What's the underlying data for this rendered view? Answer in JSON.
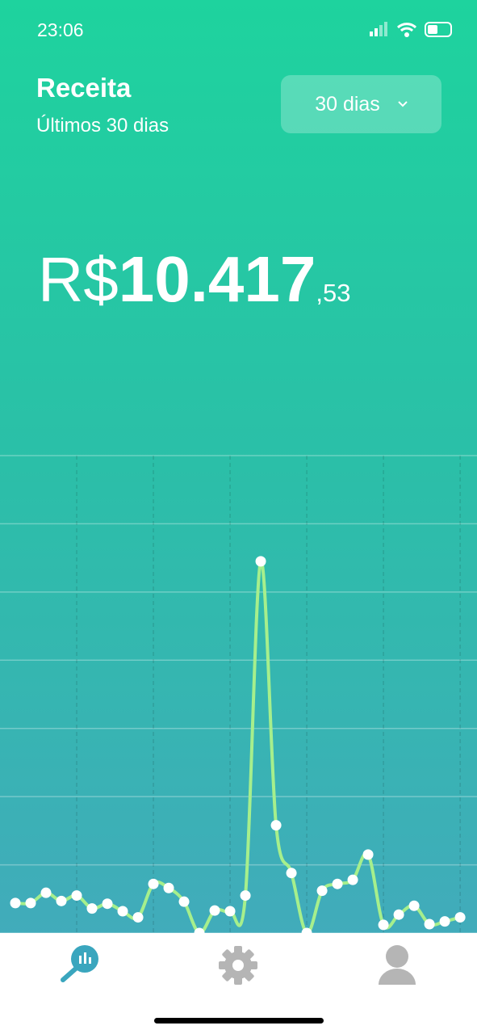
{
  "status_bar": {
    "time": "23:06"
  },
  "header": {
    "title": "Receita",
    "subtitle": "Últimos 30 dias",
    "period_button": "30 dias"
  },
  "total": {
    "currency": "R$",
    "integer": "10.417",
    "cents": ",53"
  },
  "chart_data": {
    "type": "line",
    "color": "#a6ef8c",
    "point_color": "#ffffff",
    "grid": true,
    "x": [
      1,
      2,
      3,
      4,
      5,
      6,
      7,
      8,
      9,
      10,
      11,
      12,
      13,
      14,
      15,
      16,
      17,
      18,
      19,
      20,
      21,
      22,
      23,
      24,
      25,
      26,
      27,
      28,
      29,
      30
    ],
    "series": [
      {
        "values": [
          0.44,
          0.44,
          0.59,
          0.47,
          0.55,
          0.36,
          0.43,
          0.32,
          0.23,
          0.72,
          0.66,
          0.46,
          0,
          0.33,
          0.32,
          0.55,
          5.45,
          1.58,
          0.88,
          0,
          0.62,
          0.72,
          0.78,
          1.15,
          0.12,
          0.27,
          0.4,
          0.13,
          0.17,
          0.23
        ]
      }
    ],
    "xlim": [
      0,
      31.1
    ],
    "xticks": [
      5,
      10,
      15,
      20,
      25,
      30
    ],
    "ylim": [
      0,
      7
    ],
    "yticks": [
      0,
      1,
      2,
      3,
      4,
      5,
      6,
      7
    ]
  }
}
